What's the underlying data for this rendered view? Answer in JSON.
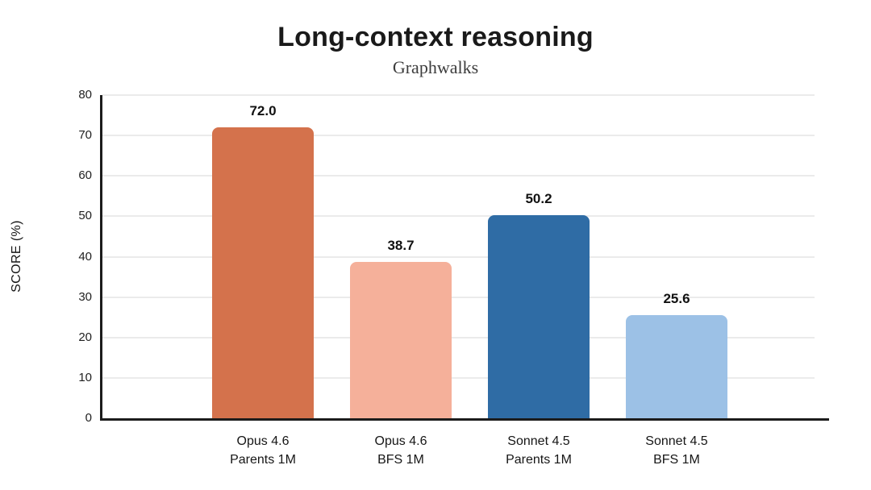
{
  "chart_data": {
    "type": "bar",
    "title": "Long-context reasoning",
    "subtitle": "Graphwalks",
    "xlabel": "",
    "ylabel": "SCORE (%)",
    "ylim": [
      0,
      80
    ],
    "yticks": [
      0,
      10,
      20,
      30,
      40,
      50,
      60,
      70,
      80
    ],
    "grid": true,
    "legend_position": "none",
    "categories": [
      [
        "Opus 4.6",
        "Parents 1M"
      ],
      [
        "Opus 4.6",
        "BFS 1M"
      ],
      [
        "Sonnet 4.5",
        "Parents 1M"
      ],
      [
        "Sonnet 4.5",
        "BFS 1M"
      ]
    ],
    "values": [
      72.0,
      38.7,
      50.2,
      25.6
    ],
    "value_labels": [
      "72.0",
      "38.7",
      "50.2",
      "25.6"
    ],
    "bar_colors": [
      "#d4724c",
      "#f5b09a",
      "#2f6ca5",
      "#9cc1e6"
    ],
    "axis_color": "#1c1c1c",
    "grid_color": "#ebebeb"
  }
}
